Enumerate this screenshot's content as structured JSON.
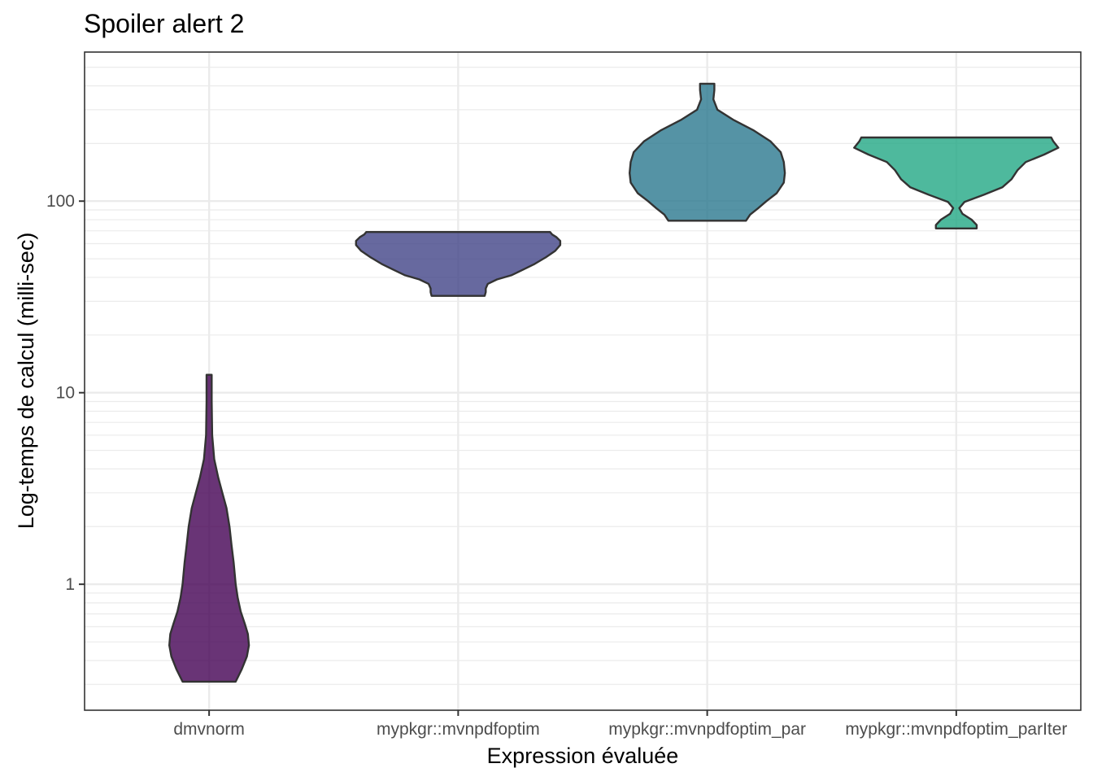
{
  "chart_data": {
    "type": "violin",
    "title": "Spoiler alert 2",
    "xlabel": "Expression évaluée",
    "ylabel": "Log-temps de calcul (milli-sec)",
    "y_scale": "log10",
    "ylim": [
      0.22,
      600
    ],
    "y_ticks": [
      1,
      10,
      100
    ],
    "y_tick_labels": [
      "1",
      "10",
      "100"
    ],
    "grid": true,
    "categories": [
      "dmvnorm",
      "mypkgr::mvnpdfoptim",
      "mypkgr::mvnpdfoptim_par",
      "mypkgr::mvnpdfoptim_parIter"
    ],
    "series": [
      {
        "category": "dmvnorm",
        "color": "#440154",
        "min": 0.31,
        "max": 12.4,
        "density": [
          [
            0.31,
            0.26
          ],
          [
            0.36,
            0.32
          ],
          [
            0.42,
            0.37
          ],
          [
            0.48,
            0.39
          ],
          [
            0.55,
            0.38
          ],
          [
            0.62,
            0.35
          ],
          [
            0.72,
            0.31
          ],
          [
            0.85,
            0.28
          ],
          [
            1.0,
            0.26
          ],
          [
            1.3,
            0.24
          ],
          [
            1.6,
            0.22
          ],
          [
            2.0,
            0.2
          ],
          [
            2.5,
            0.17
          ],
          [
            3.0,
            0.13
          ],
          [
            3.6,
            0.09
          ],
          [
            4.5,
            0.05
          ],
          [
            6.0,
            0.03
          ],
          [
            9.0,
            0.025
          ],
          [
            12.4,
            0.025
          ]
        ]
      },
      {
        "category": "mypkgr::mvnpdfoptim",
        "color": "#414487",
        "min": 32,
        "max": 69,
        "density": [
          [
            32,
            0.26
          ],
          [
            33.5,
            0.27
          ],
          [
            35,
            0.27
          ],
          [
            37,
            0.29
          ],
          [
            39,
            0.38
          ],
          [
            41,
            0.52
          ],
          [
            44,
            0.64
          ],
          [
            47,
            0.75
          ],
          [
            51,
            0.86
          ],
          [
            55,
            0.95
          ],
          [
            59,
            1.0
          ],
          [
            62,
            1.0
          ],
          [
            65,
            0.96
          ],
          [
            67,
            0.92
          ],
          [
            69,
            0.9
          ]
        ]
      },
      {
        "category": "mypkgr::mvnpdfoptim_par",
        "color": "#2a788e",
        "min": 79,
        "max": 410,
        "density": [
          [
            79,
            0.38
          ],
          [
            85,
            0.42
          ],
          [
            92,
            0.5
          ],
          [
            100,
            0.58
          ],
          [
            110,
            0.68
          ],
          [
            125,
            0.75
          ],
          [
            140,
            0.76
          ],
          [
            160,
            0.75
          ],
          [
            180,
            0.72
          ],
          [
            205,
            0.62
          ],
          [
            235,
            0.45
          ],
          [
            265,
            0.26
          ],
          [
            300,
            0.1
          ],
          [
            340,
            0.06
          ],
          [
            380,
            0.07
          ],
          [
            410,
            0.07
          ]
        ]
      },
      {
        "category": "mypkgr::mvnpdfoptim_parIter",
        "color": "#22a884",
        "min": 72,
        "max": 215,
        "density": [
          [
            72,
            0.2
          ],
          [
            75,
            0.2
          ],
          [
            80,
            0.15
          ],
          [
            86,
            0.06
          ],
          [
            92,
            0.03
          ],
          [
            99,
            0.08
          ],
          [
            108,
            0.27
          ],
          [
            118,
            0.45
          ],
          [
            130,
            0.54
          ],
          [
            145,
            0.6
          ],
          [
            160,
            0.68
          ],
          [
            175,
            0.86
          ],
          [
            190,
            1.0
          ],
          [
            205,
            0.95
          ],
          [
            215,
            0.93
          ]
        ]
      }
    ]
  }
}
